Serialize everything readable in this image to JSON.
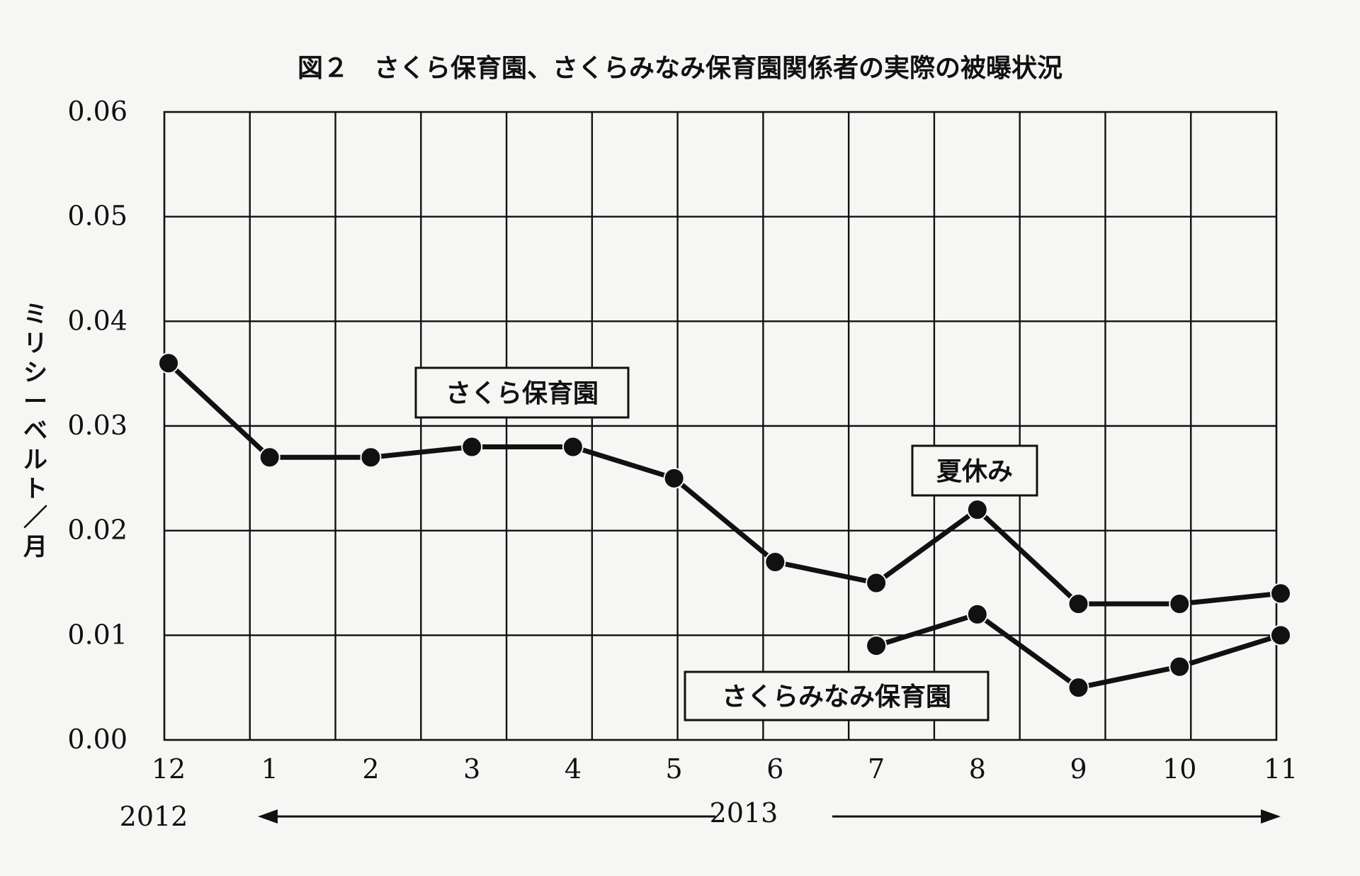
{
  "chart_data": {
    "type": "line",
    "title": "図２　さくら保育園、さくらみなみ保育園関係者の実際の被曝状況",
    "ylabel": "ミリシーベルト／月",
    "xlabel": "",
    "ylim": [
      0,
      0.06
    ],
    "yticks": [
      "0.06",
      "0.05",
      "0.04",
      "0.03",
      "0.02",
      "0.01",
      "0.00"
    ],
    "categories": [
      "12",
      "1",
      "2",
      "3",
      "4",
      "5",
      "6",
      "7",
      "8",
      "9",
      "10",
      "11"
    ],
    "year_labels": {
      "first": "2012",
      "second": "2013"
    },
    "grid": true,
    "series": [
      {
        "name": "さくら保育園",
        "values": [
          0.036,
          0.027,
          0.027,
          0.028,
          0.028,
          0.025,
          0.017,
          0.015,
          0.022,
          0.013,
          0.013,
          0.014
        ]
      },
      {
        "name": "さくらみなみ保育園",
        "values": [
          null,
          null,
          null,
          null,
          null,
          null,
          null,
          0.009,
          0.012,
          0.005,
          0.007,
          0.01
        ]
      }
    ],
    "annotations": [
      "夏休み"
    ]
  }
}
